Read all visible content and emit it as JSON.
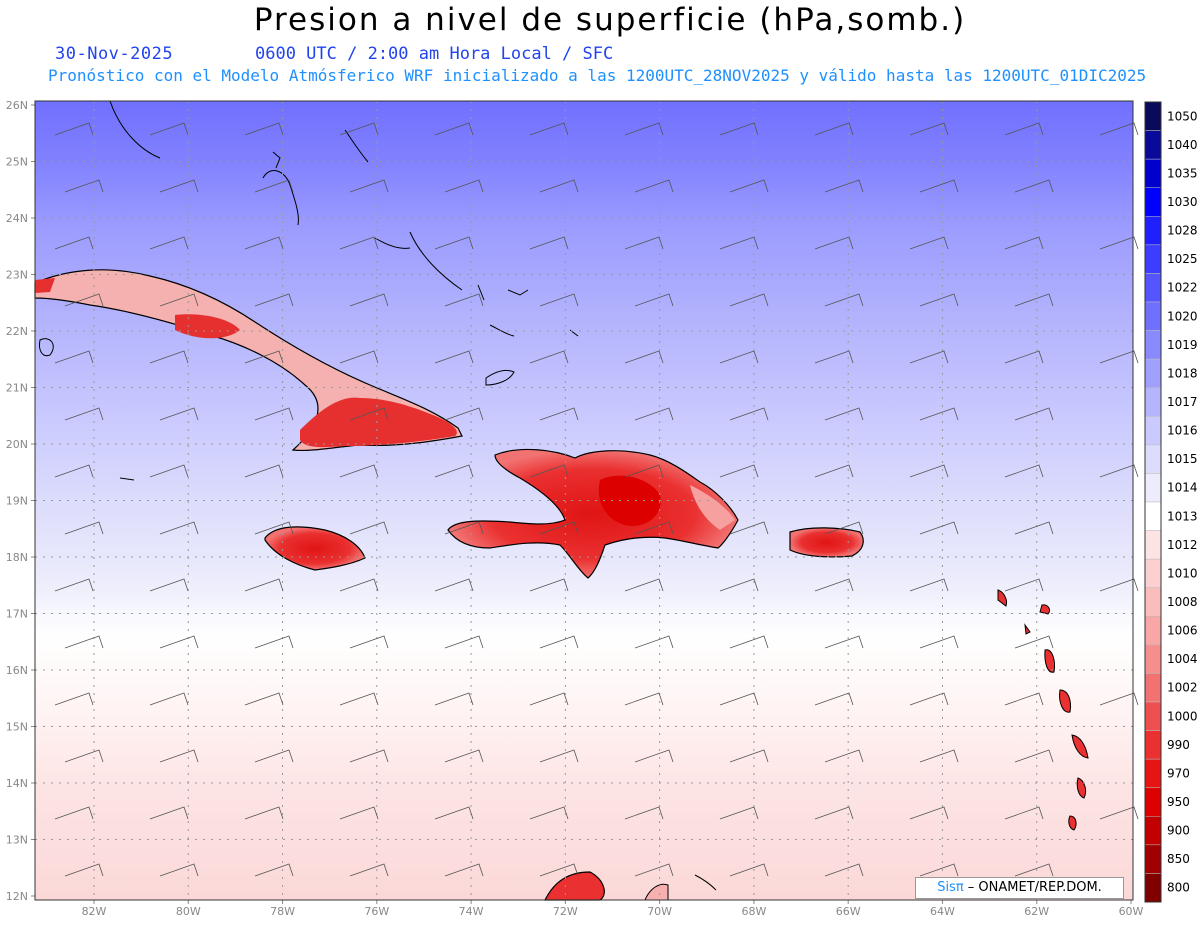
{
  "header": {
    "title": "Presion a nivel de superficie (hPa,somb.)",
    "date": "30-Nov-2025",
    "utc_line": "0600 UTC / 2:00 am Hora Local / SFC",
    "forecast_line": "Pronóstico con el Modelo Atmósferico WRF inicializado a las 1200UTC_28NOV2025 y válido hasta las  1200UTC_01DIC2025"
  },
  "map": {
    "lat_labels": [
      "26N",
      "25N",
      "24N",
      "23N",
      "22N",
      "21N",
      "20N",
      "19N",
      "18N",
      "17N",
      "16N",
      "15N",
      "14N",
      "13N",
      "12N"
    ],
    "lon_labels": [
      "82W",
      "80W",
      "78W",
      "76W",
      "74W",
      "72W",
      "70W",
      "68W",
      "66W",
      "64W",
      "62W",
      "60W"
    ],
    "colorbar": {
      "levels": [
        "1050",
        "1040",
        "1035",
        "1030",
        "1028",
        "1025",
        "1022",
        "1020",
        "1019",
        "1018",
        "1017",
        "1016",
        "1015",
        "1014",
        "1013",
        "1012",
        "1010",
        "1008",
        "1006",
        "1004",
        "1002",
        "1000",
        "990",
        "970",
        "950",
        "900",
        "850",
        "800"
      ],
      "colors": [
        "#0a0a5a",
        "#0a0a9a",
        "#0000cc",
        "#0000ff",
        "#2020ff",
        "#3d3dff",
        "#5555ff",
        "#7070ff",
        "#8a8aff",
        "#a0a0ff",
        "#b5b5ff",
        "#cacaff",
        "#dcdcfc",
        "#ececfc",
        "#ffffff",
        "#fde4e4",
        "#fcd0d0",
        "#fbbcbc",
        "#f9a6a6",
        "#f68e8e",
        "#f27272",
        "#ee5050",
        "#ea3030",
        "#e61414",
        "#dd0000",
        "#c20000",
        "#a00000",
        "#800000"
      ]
    }
  },
  "footer": {
    "brand_sis": "Sisπ",
    "brand_rest": " – ONAMET/REP.DOM."
  }
}
